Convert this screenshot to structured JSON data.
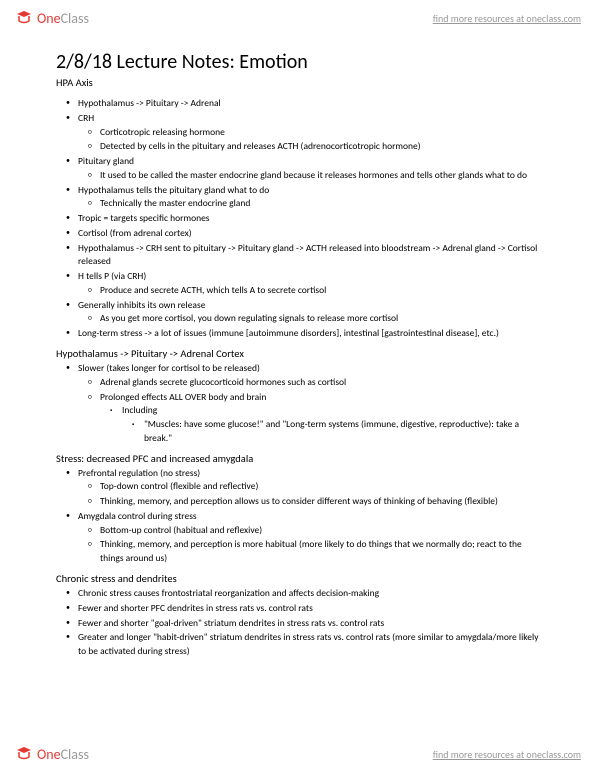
{
  "brand": {
    "one": "One",
    "class": "Class"
  },
  "findLink": "find more resources at oneclass.com",
  "title": "2/8/18 Lecture Notes: Emotion",
  "s1": {
    "h": "HPA Axis",
    "items": [
      {
        "t": "Hypothalamus -> Pituitary -> Adrenal"
      },
      {
        "t": "CRH",
        "c": [
          {
            "t": "Corticotropic releasing hormone"
          },
          {
            "t": "Detected by cells in the pituitary and releases ACTH (adrenocorticotropic hormone)"
          }
        ]
      },
      {
        "t": "Pituitary gland",
        "c": [
          {
            "t": "It used to be called the master endocrine gland because it releases hormones and tells other glands what to do"
          }
        ]
      },
      {
        "t": "Hypothalamus tells the pituitary gland what to do",
        "c": [
          {
            "t": "Technically the master endocrine gland"
          }
        ]
      },
      {
        "t": "Tropic = targets specific hormones"
      },
      {
        "t": "Cortisol (from adrenal cortex)"
      },
      {
        "t": "Hypothalamus -> CRH sent to pituitary -> Pituitary gland -> ACTH released into bloodstream -> Adrenal gland -> Cortisol released"
      },
      {
        "t": "H tells P (via CRH)",
        "c": [
          {
            "t": "Produce and secrete ACTH, which tells A to secrete cortisol"
          }
        ]
      },
      {
        "t": "Generally inhibits its own release",
        "c": [
          {
            "t": "As you get more cortisol, you down regulating signals to release more cortisol"
          }
        ]
      },
      {
        "t": "Long-term stress -> a lot of issues (immune [autoimmune disorders], intestinal [gastrointestinal disease], etc.)"
      }
    ]
  },
  "s2": {
    "h": "Hypothalamus -> Pituitary -> Adrenal Cortex",
    "items": [
      {
        "t": "Slower (takes longer for cortisol to be released)",
        "c": [
          {
            "t": "Adrenal glands secrete glucocorticoid hormones such as cortisol"
          },
          {
            "t": "Prolonged effects ALL OVER body and brain",
            "c": [
              {
                "t": "Including",
                "c": [
                  {
                    "t": "\"Muscles: have some glucose!\" and \"Long-term systems (immune, digestive, reproductive): take a break.\""
                  }
                ]
              }
            ]
          }
        ]
      }
    ]
  },
  "s3": {
    "h": "Stress: decreased PFC and increased amygdala",
    "items": [
      {
        "t": "Prefrontal regulation (no stress)",
        "c": [
          {
            "t": "Top-down control (flexible and reflective)"
          },
          {
            "t": "Thinking, memory, and perception allows us to consider different ways of thinking of behaving (flexible)"
          }
        ]
      },
      {
        "t": "Amygdala control during stress",
        "c": [
          {
            "t": "Bottom-up control (habitual and reflexive)"
          },
          {
            "t": "Thinking, memory, and perception is more habitual (more likely to do things that we normally do; react to the things around us)"
          }
        ]
      }
    ]
  },
  "s4": {
    "h": "Chronic stress and dendrites",
    "items": [
      {
        "t": "Chronic stress causes frontostriatal reorganization and affects decision-making"
      },
      {
        "t": "Fewer and shorter PFC dendrites in stress rats vs. control rats"
      },
      {
        "t": "Fewer and shorter \"goal-driven\" striatum dendrites in stress rats vs. control rats"
      },
      {
        "t": "Greater and longer \"habit-driven\" striatum dendrites in stress rats vs. control rats (more similar to amygdala/more likely to be activated during stress)"
      }
    ]
  }
}
